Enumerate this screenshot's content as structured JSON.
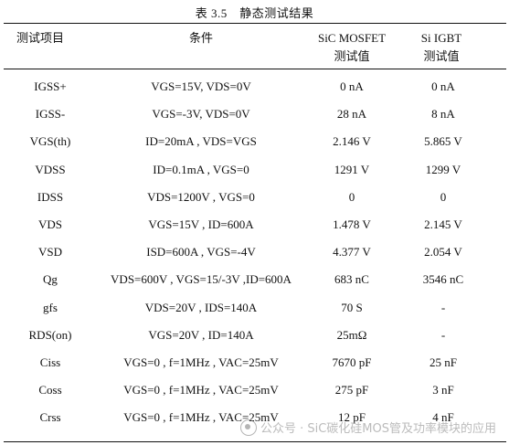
{
  "caption": "表 3.5　静态测试结果",
  "headers": {
    "item": "测试项目",
    "condition": "条件",
    "sic_line1": "SiC MOSFET",
    "sic_line2": "测试值",
    "si_line1": "Si IGBT",
    "si_line2": "测试值"
  },
  "rows": [
    {
      "item": "IGSS+",
      "condition": "VGS=15V, VDS=0V",
      "sic": "0 nA",
      "si": "0 nA"
    },
    {
      "item": "IGSS-",
      "condition": "VGS=-3V, VDS=0V",
      "sic": "28 nA",
      "si": "8 nA"
    },
    {
      "item": "VGS(th)",
      "condition": "ID=20mA , VDS=VGS",
      "sic": "2.146 V",
      "si": "5.865 V"
    },
    {
      "item": "VDSS",
      "condition": "ID=0.1mA , VGS=0",
      "sic": "1291 V",
      "si": "1299 V"
    },
    {
      "item": "IDSS",
      "condition": "VDS=1200V , VGS=0",
      "sic": "0",
      "si": "0"
    },
    {
      "item": "VDS",
      "condition": "VGS=15V , ID=600A",
      "sic": "1.478 V",
      "si": "2.145 V"
    },
    {
      "item": "VSD",
      "condition": "ISD=600A , VGS=-4V",
      "sic": "4.377 V",
      "si": "2.054 V"
    },
    {
      "item": "Qg",
      "condition": "VDS=600V , VGS=15/-3V ,ID=600A",
      "sic": "683 nC",
      "si": "3546 nC"
    },
    {
      "item": "gfs",
      "condition": "VDS=20V , IDS=140A",
      "sic": "70 S",
      "si": "-"
    },
    {
      "item": "RDS(on)",
      "condition": "VGS=20V , ID=140A",
      "sic": "25mΩ",
      "si": "-"
    },
    {
      "item": "Ciss",
      "condition": "VGS=0 , f=1MHz , VAC=25mV",
      "sic": "7670 pF",
      "si": "25 nF"
    },
    {
      "item": "Coss",
      "condition": "VGS=0 , f=1MHz , VAC=25mV",
      "sic": "275 pF",
      "si": "3 nF"
    },
    {
      "item": "Crss",
      "condition": "VGS=0 , f=1MHz , VAC=25mV",
      "sic": "12 pF",
      "si": "4 nF"
    }
  ],
  "watermark": "公众号 · SiC碳化硅MOS管及功率模块的应用",
  "watermark_icon": "wechat-icon"
}
